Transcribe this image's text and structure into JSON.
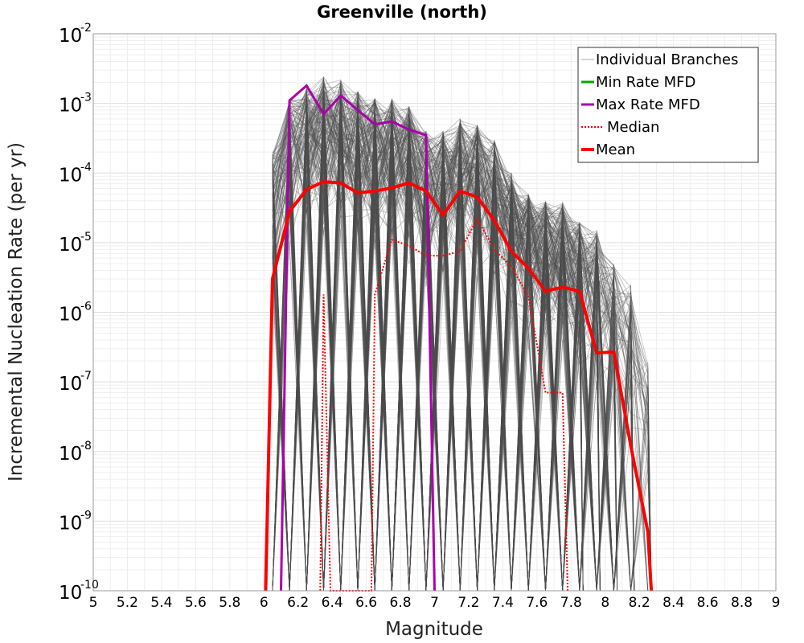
{
  "chart_data": {
    "type": "line",
    "title": "Greenville (north)",
    "xlabel": "Magnitude",
    "ylabel": "Incremental Nucleation Rate (per yr)",
    "xlim": [
      5,
      9
    ],
    "ylim": [
      1e-10,
      0.01
    ],
    "yscale": "log",
    "grid": true,
    "legend_position": "top-right",
    "x_ticks": [
      "5",
      "5.2",
      "5.4",
      "5.6",
      "5.8",
      "6",
      "6.2",
      "6.4",
      "6.6",
      "6.8",
      "7",
      "7.2",
      "7.4",
      "7.6",
      "7.8",
      "8",
      "8.2",
      "8.4",
      "8.6",
      "8.8",
      "9"
    ],
    "y_ticks": [
      {
        "base": "10",
        "exp": "-2",
        "value": 0.01
      },
      {
        "base": "10",
        "exp": "-3",
        "value": 0.001
      },
      {
        "base": "10",
        "exp": "-4",
        "value": 0.0001
      },
      {
        "base": "10",
        "exp": "-5",
        "value": 1e-05
      },
      {
        "base": "10",
        "exp": "-6",
        "value": 1e-06
      },
      {
        "base": "10",
        "exp": "-7",
        "value": 1e-07
      },
      {
        "base": "10",
        "exp": "-8",
        "value": 1e-08
      },
      {
        "base": "10",
        "exp": "-9",
        "value": 1e-09
      },
      {
        "base": "10",
        "exp": "-10",
        "value": 1e-10
      }
    ],
    "series": [
      {
        "name": "Individual Branches",
        "color": "#4d4d4d",
        "style": "thin-many",
        "envelope_x": [
          6.05,
          6.15,
          6.25,
          6.35,
          6.45,
          6.55,
          6.65,
          6.75,
          6.85,
          6.95,
          7.05,
          7.15,
          7.25,
          7.35,
          7.45,
          7.55,
          7.65,
          7.75,
          7.85,
          7.95,
          8.05,
          8.15,
          8.25
        ],
        "envelope_max": [
          0.0002,
          0.0012,
          0.0018,
          0.0025,
          0.0022,
          0.0015,
          0.0012,
          0.0012,
          0.0009,
          0.0004,
          0.0004,
          0.0006,
          0.0005,
          0.0003,
          0.0001,
          5e-05,
          4e-05,
          4e-05,
          2e-05,
          1.5e-05,
          5e-06,
          2.5e-06,
          2e-07
        ]
      },
      {
        "name": "Min Rate MFD",
        "color": "#00aa00",
        "style": "solid",
        "x": [],
        "y": []
      },
      {
        "name": "Max Rate MFD",
        "color": "#aa00aa",
        "style": "solid",
        "x": [
          6.1,
          6.15,
          6.25,
          6.35,
          6.45,
          6.55,
          6.65,
          6.75,
          6.85,
          6.95,
          7.0
        ],
        "y": [
          1e-10,
          0.0011,
          0.0018,
          0.0007,
          0.0013,
          0.0008,
          0.0005,
          0.00055,
          0.00042,
          0.00035,
          1e-10
        ]
      },
      {
        "name": "Median",
        "color": "#ff0000",
        "style": "dotted",
        "x": [
          6.33,
          6.35,
          6.39,
          6.63,
          6.65,
          6.75,
          6.85,
          6.95,
          7.05,
          7.15,
          7.25,
          7.35,
          7.45,
          7.55,
          7.65,
          7.75,
          7.78
        ],
        "y": [
          1e-10,
          1.8e-06,
          1e-10,
          1e-10,
          1.8e-06,
          1.1e-05,
          9e-06,
          6.5e-06,
          6.5e-06,
          7.5e-06,
          2.2e-05,
          8e-06,
          4.5e-06,
          1.7e-06,
          7e-08,
          7e-08,
          1e-10
        ]
      },
      {
        "name": "Mean",
        "color": "#ff0000",
        "style": "thick",
        "x": [
          6.01,
          6.05,
          6.15,
          6.25,
          6.35,
          6.45,
          6.55,
          6.65,
          6.75,
          6.85,
          6.95,
          7.05,
          7.15,
          7.25,
          7.35,
          7.45,
          7.55,
          7.65,
          7.75,
          7.85,
          7.95,
          8.05,
          8.15,
          8.25,
          8.27
        ],
        "y": [
          1e-10,
          3e-06,
          2.8e-05,
          5.8e-05,
          7.5e-05,
          7.2e-05,
          5.2e-05,
          5.5e-05,
          6.1e-05,
          7.2e-05,
          5.5e-05,
          2.5e-05,
          5.5e-05,
          4.5e-05,
          2.1e-05,
          7.5e-06,
          4.3e-06,
          2e-06,
          2.3e-06,
          2e-06,
          2.6e-07,
          2.7e-07,
          1.2e-08,
          7e-10,
          1e-10
        ]
      }
    ]
  }
}
